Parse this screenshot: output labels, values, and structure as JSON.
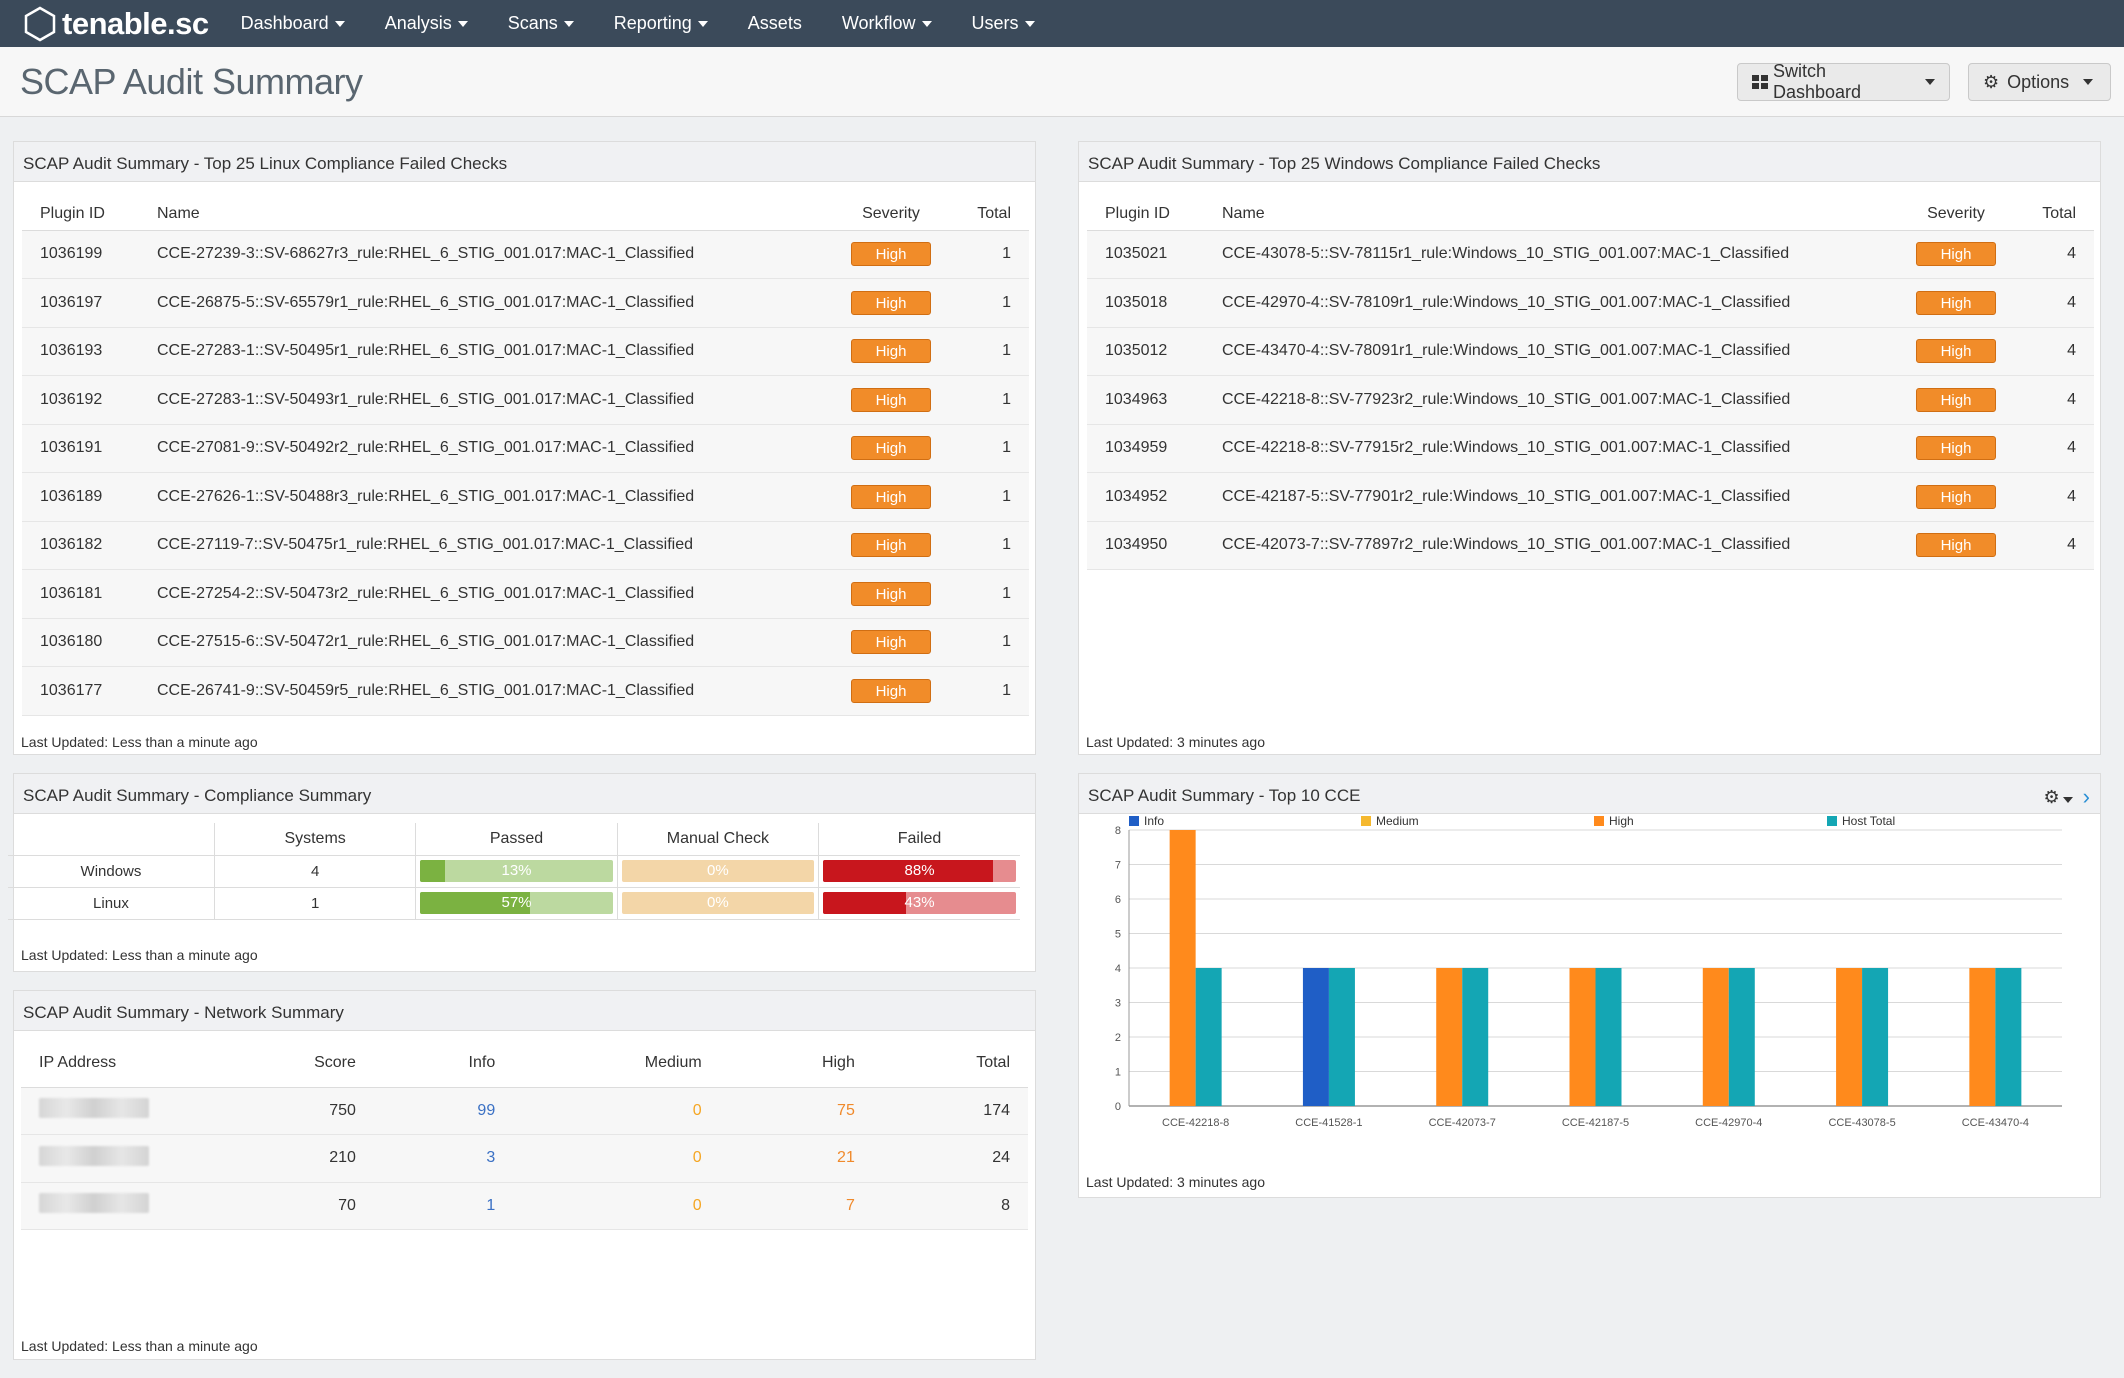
{
  "app": {
    "logo_text": "tenable.sc",
    "nav": [
      "Dashboard",
      "Analysis",
      "Scans",
      "Reporting",
      "Assets",
      "Workflow",
      "Users"
    ],
    "nav_has_caret": [
      true,
      true,
      true,
      true,
      false,
      true,
      true
    ]
  },
  "header": {
    "title": "SCAP Audit Summary",
    "switch_label": "Switch Dashboard",
    "options_label": "Options"
  },
  "linux": {
    "title": "SCAP Audit Summary - Top 25 Linux Compliance Failed Checks",
    "columns": [
      "Plugin ID",
      "Name",
      "Severity",
      "Total"
    ],
    "rows": [
      {
        "id": "1036199",
        "name": "CCE-27239-3::SV-68627r3_rule:RHEL_6_STIG_001.017:MAC-1_Classified",
        "severity": "High",
        "total": "1"
      },
      {
        "id": "1036197",
        "name": "CCE-26875-5::SV-65579r1_rule:RHEL_6_STIG_001.017:MAC-1_Classified",
        "severity": "High",
        "total": "1"
      },
      {
        "id": "1036193",
        "name": "CCE-27283-1::SV-50495r1_rule:RHEL_6_STIG_001.017:MAC-1_Classified",
        "severity": "High",
        "total": "1"
      },
      {
        "id": "1036192",
        "name": "CCE-27283-1::SV-50493r1_rule:RHEL_6_STIG_001.017:MAC-1_Classified",
        "severity": "High",
        "total": "1"
      },
      {
        "id": "1036191",
        "name": "CCE-27081-9::SV-50492r2_rule:RHEL_6_STIG_001.017:MAC-1_Classified",
        "severity": "High",
        "total": "1"
      },
      {
        "id": "1036189",
        "name": "CCE-27626-1::SV-50488r3_rule:RHEL_6_STIG_001.017:MAC-1_Classified",
        "severity": "High",
        "total": "1"
      },
      {
        "id": "1036182",
        "name": "CCE-27119-7::SV-50475r1_rule:RHEL_6_STIG_001.017:MAC-1_Classified",
        "severity": "High",
        "total": "1"
      },
      {
        "id": "1036181",
        "name": "CCE-27254-2::SV-50473r2_rule:RHEL_6_STIG_001.017:MAC-1_Classified",
        "severity": "High",
        "total": "1"
      },
      {
        "id": "1036180",
        "name": "CCE-27515-6::SV-50472r1_rule:RHEL_6_STIG_001.017:MAC-1_Classified",
        "severity": "High",
        "total": "1"
      },
      {
        "id": "1036177",
        "name": "CCE-26741-9::SV-50459r5_rule:RHEL_6_STIG_001.017:MAC-1_Classified",
        "severity": "High",
        "total": "1"
      }
    ],
    "updated": "Last Updated: Less than a minute ago"
  },
  "windows": {
    "title": "SCAP Audit Summary - Top 25 Windows Compliance Failed Checks",
    "columns": [
      "Plugin ID",
      "Name",
      "Severity",
      "Total"
    ],
    "rows": [
      {
        "id": "1035021",
        "name": "CCE-43078-5::SV-78115r1_rule:Windows_10_STIG_001.007:MAC-1_Classified",
        "severity": "High",
        "total": "4"
      },
      {
        "id": "1035018",
        "name": "CCE-42970-4::SV-78109r1_rule:Windows_10_STIG_001.007:MAC-1_Classified",
        "severity": "High",
        "total": "4"
      },
      {
        "id": "1035012",
        "name": "CCE-43470-4::SV-78091r1_rule:Windows_10_STIG_001.007:MAC-1_Classified",
        "severity": "High",
        "total": "4"
      },
      {
        "id": "1034963",
        "name": "CCE-42218-8::SV-77923r2_rule:Windows_10_STIG_001.007:MAC-1_Classified",
        "severity": "High",
        "total": "4"
      },
      {
        "id": "1034959",
        "name": "CCE-42218-8::SV-77915r2_rule:Windows_10_STIG_001.007:MAC-1_Classified",
        "severity": "High",
        "total": "4"
      },
      {
        "id": "1034952",
        "name": "CCE-42187-5::SV-77901r2_rule:Windows_10_STIG_001.007:MAC-1_Classified",
        "severity": "High",
        "total": "4"
      },
      {
        "id": "1034950",
        "name": "CCE-42073-7::SV-77897r2_rule:Windows_10_STIG_001.007:MAC-1_Classified",
        "severity": "High",
        "total": "4"
      }
    ],
    "updated": "Last Updated: 3 minutes ago"
  },
  "compliance": {
    "title": "SCAP Audit Summary - Compliance Summary",
    "columns": [
      "",
      "Systems",
      "Passed",
      "Manual Check",
      "Failed"
    ],
    "rows": [
      {
        "name": "Windows",
        "systems": "4",
        "passed": 13,
        "passed_label": "13%",
        "manual": 0,
        "manual_label": "0%",
        "failed": 88,
        "failed_label": "88%"
      },
      {
        "name": "Linux",
        "systems": "1",
        "passed": 57,
        "passed_label": "57%",
        "manual": 0,
        "manual_label": "0%",
        "failed": 43,
        "failed_label": "43%"
      }
    ],
    "colors": {
      "passed": "#7bb241",
      "passed_bg": "#bcd9a0",
      "manual": "#f0b55d",
      "manual_bg": "#f3d6a8",
      "failed": "#c8161d",
      "failed_bg": "#e68c8f"
    },
    "updated": "Last Updated: Less than a minute ago"
  },
  "network": {
    "title": "SCAP Audit Summary - Network Summary",
    "columns": [
      "IP Address",
      "Score",
      "Info",
      "Medium",
      "High",
      "Total"
    ],
    "rows": [
      {
        "score": "750",
        "info": "99",
        "medium": "0",
        "high": "75",
        "total": "174"
      },
      {
        "score": "210",
        "info": "3",
        "medium": "0",
        "high": "21",
        "total": "24"
      },
      {
        "score": "70",
        "info": "1",
        "medium": "0",
        "high": "7",
        "total": "8"
      }
    ],
    "updated": "Last Updated: Less than a minute ago"
  },
  "cce": {
    "title": "SCAP Audit Summary - Top 10 CCE",
    "updated": "Last Updated: 3 minutes ago",
    "chart_data": {
      "type": "bar",
      "categories": [
        "CCE-42218-8",
        "CCE-41528-1",
        "CCE-42073-7",
        "CCE-42187-5",
        "CCE-42970-4",
        "CCE-43078-5",
        "CCE-43470-4"
      ],
      "series": [
        {
          "name": "Info",
          "color": "#1f5ec6",
          "values": [
            0,
            4,
            0,
            0,
            0,
            0,
            0
          ]
        },
        {
          "name": "Medium",
          "color": "#f5b82e",
          "values": [
            0,
            0,
            0,
            0,
            0,
            0,
            0
          ]
        },
        {
          "name": "High",
          "color": "#ff8a1c",
          "values": [
            8,
            0,
            4,
            4,
            4,
            4,
            4
          ]
        },
        {
          "name": "Host Total",
          "color": "#14a6b4",
          "values": [
            4,
            4,
            4,
            4,
            4,
            4,
            4
          ]
        }
      ],
      "yticks": [
        "0",
        "1",
        "2",
        "3",
        "4",
        "5",
        "6",
        "7",
        "8"
      ],
      "ylim": [
        0,
        8
      ],
      "grid": true,
      "legend": "top"
    }
  }
}
